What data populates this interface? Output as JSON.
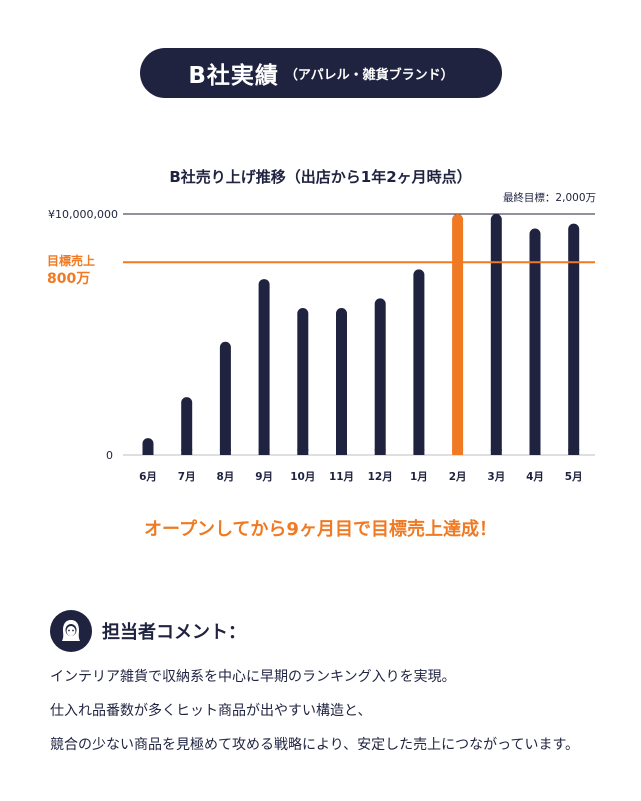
{
  "header": {
    "title": "B社実績",
    "subtitle": "（アパレル・雑貨ブランド）"
  },
  "colors": {
    "navy": "#1f2340",
    "orange": "#f07a23",
    "grid": "#bfbfbf"
  },
  "chart_data": {
    "type": "bar",
    "title": "B社売り上げ推移（出店から1年2ヶ月時点）",
    "categories": [
      "6月",
      "7月",
      "8月",
      "9月",
      "10月",
      "11月",
      "12月",
      "1月",
      "2月",
      "3月",
      "4月",
      "5月"
    ],
    "values": [
      700000,
      2400000,
      4700000,
      7300000,
      6100000,
      6100000,
      6500000,
      7700000,
      10000000,
      10000000,
      9400000,
      9600000
    ],
    "highlight_index": 8,
    "ylim": [
      0,
      10000000
    ],
    "y_tick_labels": {
      "top": "¥10,000,000",
      "bottom": "0"
    },
    "target": {
      "value": 8000000,
      "label_line1": "目標売上",
      "label_line2": "800万"
    },
    "annotation": "最終目標：2,000万",
    "xlabel": "",
    "ylabel": ""
  },
  "achievement": "オープンしてから9ヶ月目で目標売上達成！",
  "comment": {
    "title": "担当者コメント：",
    "avatar_icon": "person-icon",
    "lines": [
      "インテリア雑貨で収納系を中心に早期のランキング入りを実現。",
      "仕入れ品番数が多くヒット商品が出やすい構造と、",
      "競合の少ない商品を見極めて攻める戦略により、安定した売上につながっています。"
    ]
  }
}
